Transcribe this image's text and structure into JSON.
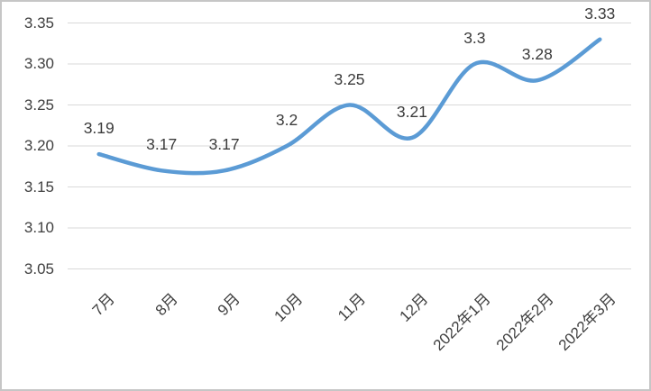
{
  "chart_data": {
    "type": "line",
    "title": "",
    "categories": [
      "7月",
      "8月",
      "9月",
      "10月",
      "11月",
      "12月",
      "2022年1月",
      "2022年2月",
      "2022年3月"
    ],
    "series": [
      {
        "name": "",
        "values": [
          3.19,
          3.17,
          3.17,
          3.2,
          3.25,
          3.21,
          3.3,
          3.28,
          3.33
        ]
      }
    ],
    "data_labels": [
      "3.19",
      "3.17",
      "3.17",
      "3.2",
      "3.25",
      "3.21",
      "3.3",
      "3.28",
      "3.33"
    ],
    "xlabel": "",
    "ylabel": "",
    "y_ticks": [
      "3.35",
      "3.30",
      "3.25",
      "3.20",
      "3.15",
      "3.10",
      "3.05"
    ],
    "y_tick_values": [
      3.35,
      3.3,
      3.25,
      3.2,
      3.15,
      3.1,
      3.05
    ],
    "ylim": [
      3.05,
      3.35
    ],
    "grid": true,
    "smooth": true,
    "legend_position": "none",
    "line_color": "#5b9bd5",
    "gridline_color": "#d9d9d9",
    "axis_text_color": "#3f3f3f",
    "border_color": "#c6c6c6"
  }
}
